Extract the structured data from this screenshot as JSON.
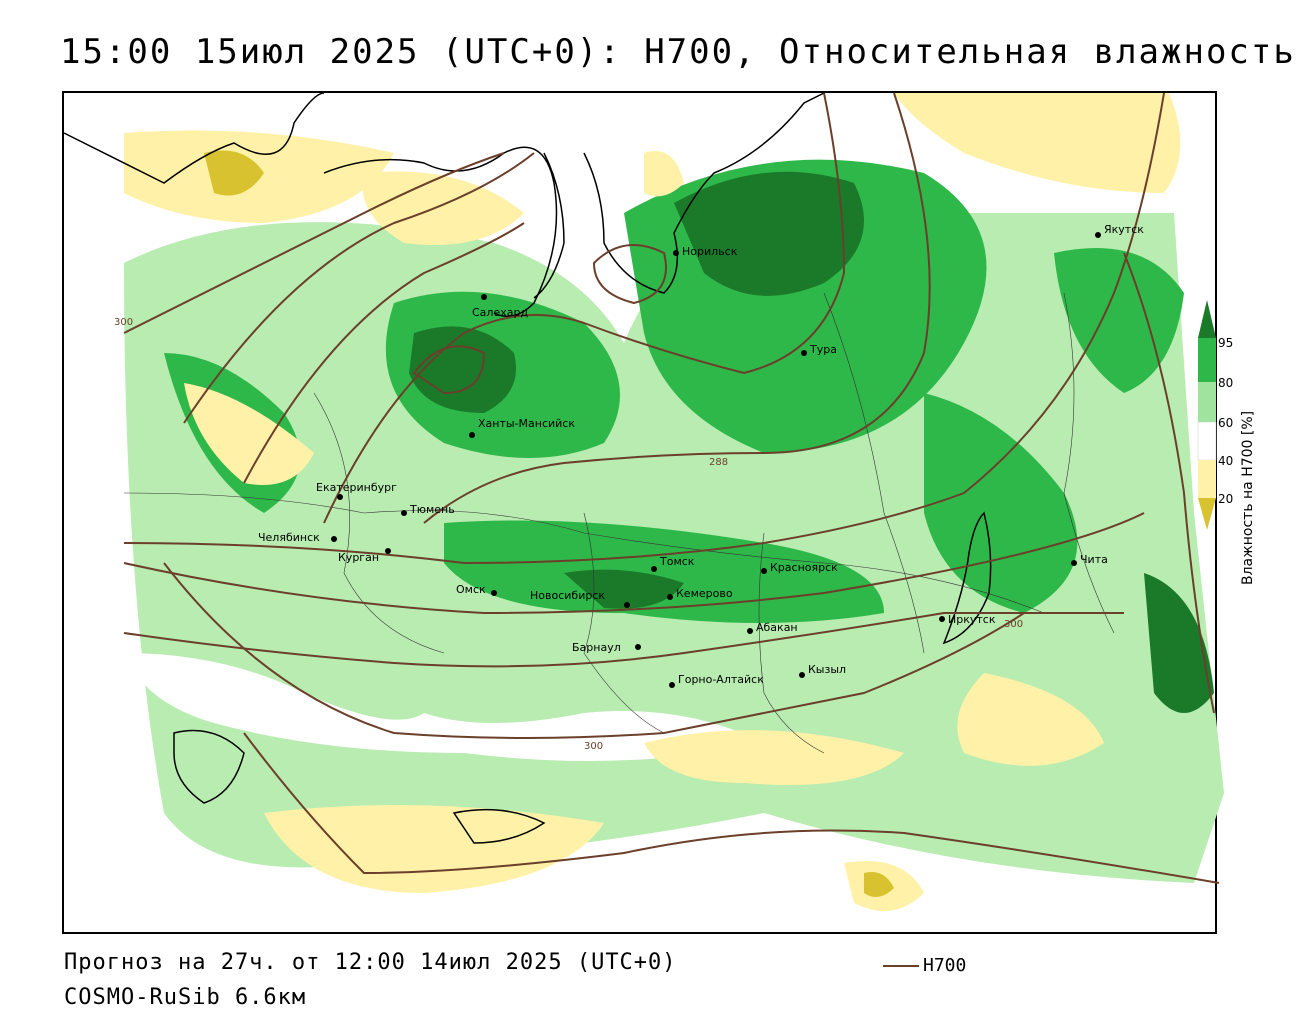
{
  "title": "15:00 15июл 2025 (UTC+0): H700, Относительная влажность",
  "footer": {
    "forecast": "Прогноз на 27ч. от 12:00 14июл 2025 (UTC+0)",
    "model": "COSMO-RuSib 6.6км",
    "legend_line_label": "H700"
  },
  "colorbar": {
    "title": "Влажность на H700 [%]",
    "ticks": [
      "95",
      "80",
      "60",
      "40",
      "20"
    ],
    "colors": {
      "c95": "#1a7a2a",
      "c80": "#2eb84a",
      "c60": "#9fe39f",
      "c40": "#ffffff",
      "c20": "#fff2a8",
      "c0": "#d8c230"
    }
  },
  "isolines": {
    "color": "#6b3f2a",
    "labels": [
      "300",
      "288",
      "300",
      "300"
    ]
  },
  "cities": [
    {
      "name": "Салехард"
    },
    {
      "name": "Норильск"
    },
    {
      "name": "Тура"
    },
    {
      "name": "Якутск"
    },
    {
      "name": "Ханты-Мансийск"
    },
    {
      "name": "Екатеринбург"
    },
    {
      "name": "Тюмень"
    },
    {
      "name": "Челябинск"
    },
    {
      "name": "Курган"
    },
    {
      "name": "Омск"
    },
    {
      "name": "Новосибирск"
    },
    {
      "name": "Томск"
    },
    {
      "name": "Кемерово"
    },
    {
      "name": "Красноярск"
    },
    {
      "name": "Барнаул"
    },
    {
      "name": "Абакан"
    },
    {
      "name": "Горно-Алтайск"
    },
    {
      "name": "Кызыл"
    },
    {
      "name": "Иркутск"
    },
    {
      "name": "Чита"
    }
  ]
}
